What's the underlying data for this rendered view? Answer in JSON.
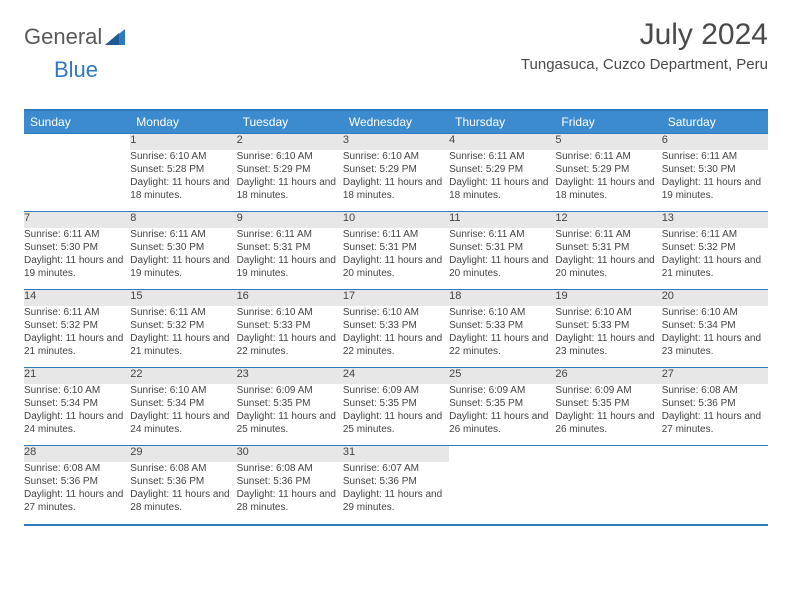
{
  "logo": {
    "general": "General",
    "blue": "Blue"
  },
  "title": "July 2024",
  "location": "Tungasuca, Cuzco Department, Peru",
  "colors": {
    "header_bg": "#3b8bce",
    "rule": "#2f7abf",
    "daynum_bg": "#e7e7e7",
    "text": "#444444"
  },
  "weekdays": [
    "Sunday",
    "Monday",
    "Tuesday",
    "Wednesday",
    "Thursday",
    "Friday",
    "Saturday"
  ],
  "weeks": [
    [
      null,
      {
        "n": "1",
        "sr": "6:10 AM",
        "ss": "5:28 PM",
        "dl": "11 hours and 18 minutes."
      },
      {
        "n": "2",
        "sr": "6:10 AM",
        "ss": "5:29 PM",
        "dl": "11 hours and 18 minutes."
      },
      {
        "n": "3",
        "sr": "6:10 AM",
        "ss": "5:29 PM",
        "dl": "11 hours and 18 minutes."
      },
      {
        "n": "4",
        "sr": "6:11 AM",
        "ss": "5:29 PM",
        "dl": "11 hours and 18 minutes."
      },
      {
        "n": "5",
        "sr": "6:11 AM",
        "ss": "5:29 PM",
        "dl": "11 hours and 18 minutes."
      },
      {
        "n": "6",
        "sr": "6:11 AM",
        "ss": "5:30 PM",
        "dl": "11 hours and 19 minutes."
      }
    ],
    [
      {
        "n": "7",
        "sr": "6:11 AM",
        "ss": "5:30 PM",
        "dl": "11 hours and 19 minutes."
      },
      {
        "n": "8",
        "sr": "6:11 AM",
        "ss": "5:30 PM",
        "dl": "11 hours and 19 minutes."
      },
      {
        "n": "9",
        "sr": "6:11 AM",
        "ss": "5:31 PM",
        "dl": "11 hours and 19 minutes."
      },
      {
        "n": "10",
        "sr": "6:11 AM",
        "ss": "5:31 PM",
        "dl": "11 hours and 20 minutes."
      },
      {
        "n": "11",
        "sr": "6:11 AM",
        "ss": "5:31 PM",
        "dl": "11 hours and 20 minutes."
      },
      {
        "n": "12",
        "sr": "6:11 AM",
        "ss": "5:31 PM",
        "dl": "11 hours and 20 minutes."
      },
      {
        "n": "13",
        "sr": "6:11 AM",
        "ss": "5:32 PM",
        "dl": "11 hours and 21 minutes."
      }
    ],
    [
      {
        "n": "14",
        "sr": "6:11 AM",
        "ss": "5:32 PM",
        "dl": "11 hours and 21 minutes."
      },
      {
        "n": "15",
        "sr": "6:11 AM",
        "ss": "5:32 PM",
        "dl": "11 hours and 21 minutes."
      },
      {
        "n": "16",
        "sr": "6:10 AM",
        "ss": "5:33 PM",
        "dl": "11 hours and 22 minutes."
      },
      {
        "n": "17",
        "sr": "6:10 AM",
        "ss": "5:33 PM",
        "dl": "11 hours and 22 minutes."
      },
      {
        "n": "18",
        "sr": "6:10 AM",
        "ss": "5:33 PM",
        "dl": "11 hours and 22 minutes."
      },
      {
        "n": "19",
        "sr": "6:10 AM",
        "ss": "5:33 PM",
        "dl": "11 hours and 23 minutes."
      },
      {
        "n": "20",
        "sr": "6:10 AM",
        "ss": "5:34 PM",
        "dl": "11 hours and 23 minutes."
      }
    ],
    [
      {
        "n": "21",
        "sr": "6:10 AM",
        "ss": "5:34 PM",
        "dl": "11 hours and 24 minutes."
      },
      {
        "n": "22",
        "sr": "6:10 AM",
        "ss": "5:34 PM",
        "dl": "11 hours and 24 minutes."
      },
      {
        "n": "23",
        "sr": "6:09 AM",
        "ss": "5:35 PM",
        "dl": "11 hours and 25 minutes."
      },
      {
        "n": "24",
        "sr": "6:09 AM",
        "ss": "5:35 PM",
        "dl": "11 hours and 25 minutes."
      },
      {
        "n": "25",
        "sr": "6:09 AM",
        "ss": "5:35 PM",
        "dl": "11 hours and 26 minutes."
      },
      {
        "n": "26",
        "sr": "6:09 AM",
        "ss": "5:35 PM",
        "dl": "11 hours and 26 minutes."
      },
      {
        "n": "27",
        "sr": "6:08 AM",
        "ss": "5:36 PM",
        "dl": "11 hours and 27 minutes."
      }
    ],
    [
      {
        "n": "28",
        "sr": "6:08 AM",
        "ss": "5:36 PM",
        "dl": "11 hours and 27 minutes."
      },
      {
        "n": "29",
        "sr": "6:08 AM",
        "ss": "5:36 PM",
        "dl": "11 hours and 28 minutes."
      },
      {
        "n": "30",
        "sr": "6:08 AM",
        "ss": "5:36 PM",
        "dl": "11 hours and 28 minutes."
      },
      {
        "n": "31",
        "sr": "6:07 AM",
        "ss": "5:36 PM",
        "dl": "11 hours and 29 minutes."
      },
      null,
      null,
      null
    ]
  ]
}
